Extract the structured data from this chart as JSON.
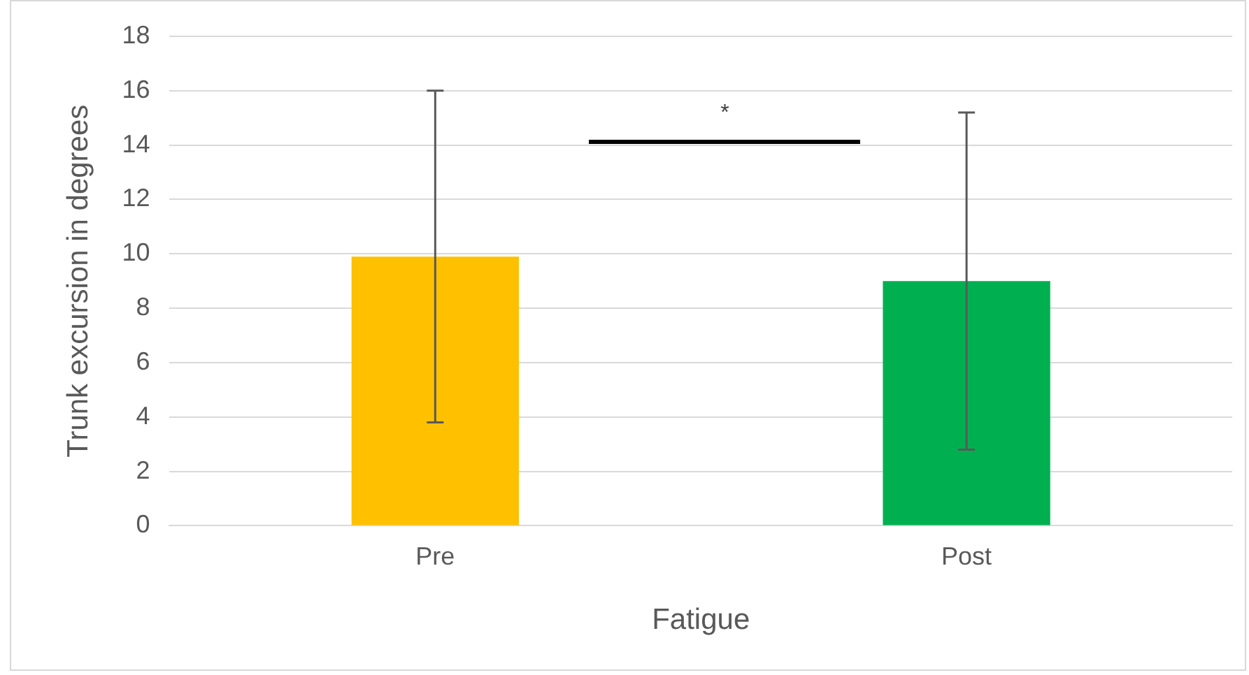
{
  "chart_data": {
    "type": "bar",
    "xlabel": "Fatigue",
    "ylabel": "Trunk excursion in degrees",
    "categories": [
      "Pre",
      "Post"
    ],
    "values": [
      9.9,
      9.0
    ],
    "colors": [
      "#ffc000",
      "#00b050"
    ],
    "errors": [
      6.1,
      6.2
    ],
    "ylim": [
      0,
      18
    ],
    "yticks": [
      0,
      2,
      4,
      6,
      8,
      10,
      12,
      14,
      16,
      18
    ],
    "grid": "y",
    "annotations": [
      "*"
    ]
  }
}
